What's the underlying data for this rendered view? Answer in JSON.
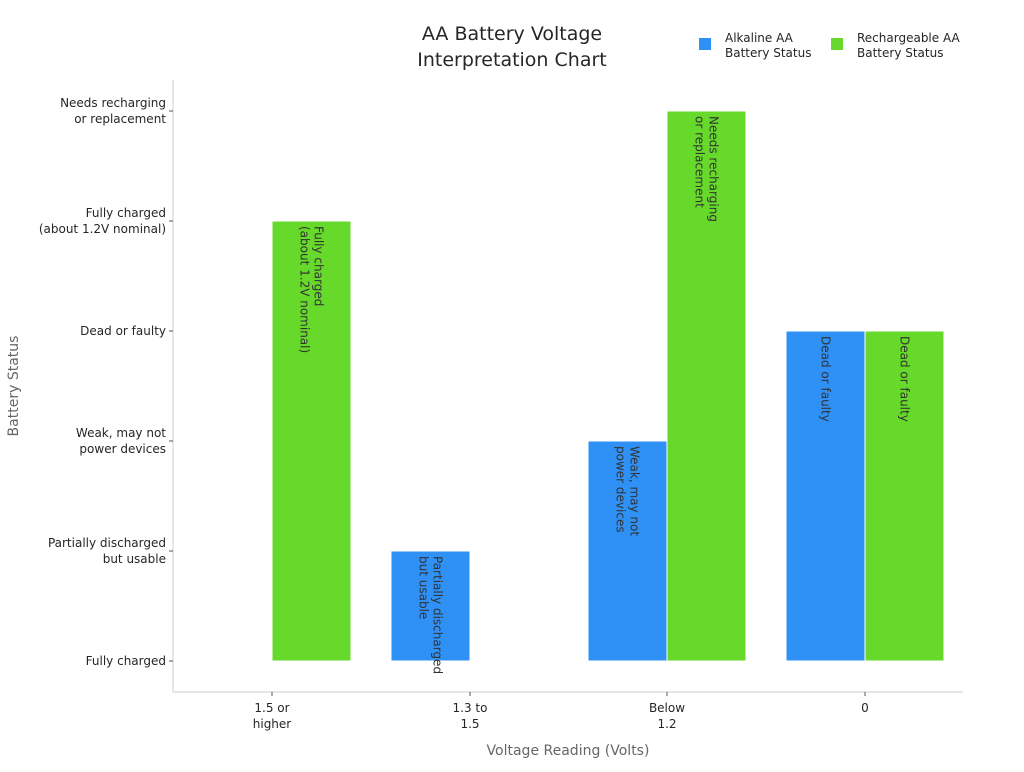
{
  "chart_data": {
    "type": "bar",
    "title": "AA Battery Voltage\nInterpretation Chart",
    "xlabel": "Voltage Reading (Volts)",
    "ylabel": "Battery Status",
    "categories": [
      "1.5 or\nhigher",
      "1.3 to\n1.5",
      "Below\n1.2",
      "0"
    ],
    "y_levels": [
      "Fully charged",
      "Partially discharged\nbut usable",
      "Weak, may not\npower devices",
      "Dead or faulty",
      "Fully charged\n(about 1.2V nominal)",
      "Needs recharging\nor replacement"
    ],
    "series": [
      {
        "name": "Alkaline AA\nBattery Status",
        "color": "#2f90f5",
        "values": [
          null,
          "Partially discharged\nbut usable",
          "Weak, may not\npower devices",
          "Dead or faulty"
        ]
      },
      {
        "name": "Rechargeable AA\nBattery Status",
        "color": "#66d92a",
        "values": [
          "Fully charged\n(about 1.2V nominal)",
          null,
          "Needs recharging\nor replacement",
          "Dead or faulty"
        ]
      }
    ],
    "legend_position": "top-right",
    "grid": false
  }
}
